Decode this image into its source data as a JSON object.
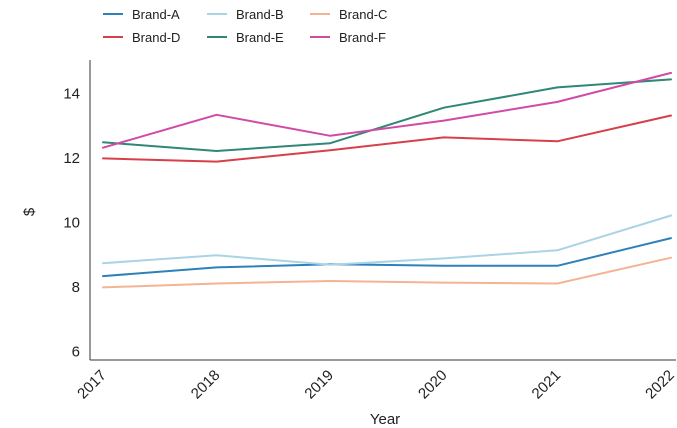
{
  "chart_data": {
    "type": "line",
    "title": "",
    "xlabel": "Year",
    "ylabel": "$",
    "x": [
      "2017",
      "2018",
      "2019",
      "2020",
      "2021",
      "2022"
    ],
    "yticks": [
      6,
      8,
      10,
      12,
      14
    ],
    "ylim": [
      5.7,
      15.0
    ],
    "grid": false,
    "legend": "top-left",
    "series": [
      {
        "name": "Brand-A",
        "color": "#2e80b8",
        "values": [
          8.3,
          8.57,
          8.67,
          8.62,
          8.62,
          9.48
        ]
      },
      {
        "name": "Brand-B",
        "color": "#a9d3e6",
        "values": [
          8.7,
          8.95,
          8.65,
          8.85,
          9.1,
          10.18
        ]
      },
      {
        "name": "Brand-C",
        "color": "#f4b394",
        "values": [
          7.95,
          8.07,
          8.15,
          8.1,
          8.07,
          8.87
        ]
      },
      {
        "name": "Brand-D",
        "color": "#d64049",
        "values": [
          11.95,
          11.85,
          12.2,
          12.6,
          12.48,
          13.28
        ]
      },
      {
        "name": "Brand-E",
        "color": "#2f8775",
        "values": [
          12.45,
          12.18,
          12.42,
          13.52,
          14.15,
          14.4
        ]
      },
      {
        "name": "Brand-F",
        "color": "#d04aa8",
        "values": [
          12.28,
          13.3,
          12.65,
          13.12,
          13.7,
          14.6
        ]
      }
    ]
  }
}
